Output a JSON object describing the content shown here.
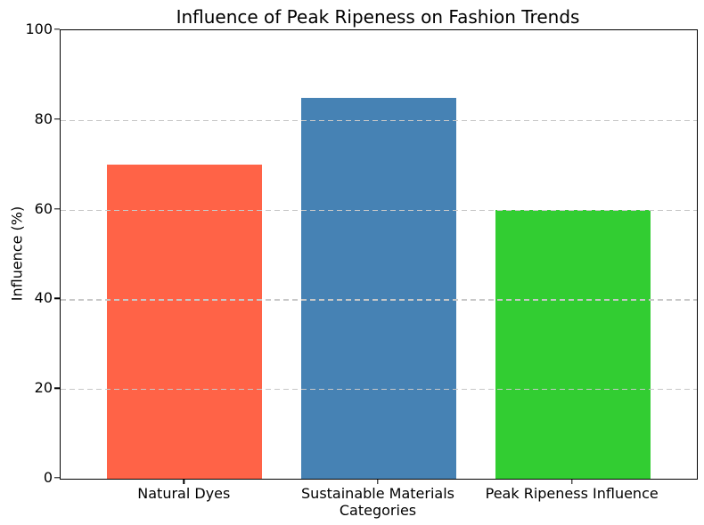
{
  "chart_data": {
    "type": "bar",
    "title": "Influence of Peak Ripeness on Fashion Trends",
    "xlabel": "Categories",
    "ylabel": "Influence (%)",
    "categories": [
      "Natural Dyes",
      "Sustainable Materials",
      "Peak Ripeness Influence"
    ],
    "values": [
      70,
      85,
      60
    ],
    "bar_colors": [
      "#ff6347",
      "#4682b4",
      "#32cd32"
    ],
    "ylim": [
      0,
      100
    ],
    "yticks": [
      0,
      20,
      40,
      60,
      80,
      100
    ],
    "bar_width_fraction": 0.8,
    "x_margin_fraction": 0.05,
    "grid": {
      "axis": "y",
      "style": "dashed",
      "color": "#c8c8c8",
      "above_bars": true
    },
    "legend": "none",
    "background": "#ffffff",
    "axis_color": "#000000"
  }
}
